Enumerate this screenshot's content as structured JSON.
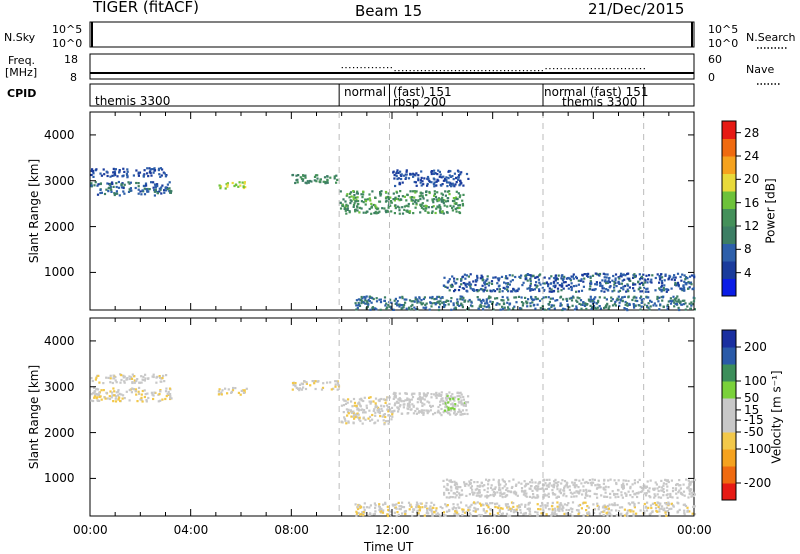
{
  "header": {
    "title": "TIGER (fitACF)",
    "beam": "Beam 15",
    "date": "21/Dec/2015"
  },
  "params": {
    "nsky_label": "N.Sky",
    "nsky_ticks": [
      "10^5",
      "10^0"
    ],
    "nsearch_label": "N.Search",
    "freq_label_1": "Freq.",
    "freq_label_2": "[MHz]",
    "freq_ticks": [
      "18",
      "8"
    ],
    "nave_label": "Nave",
    "nave_ticks": [
      "60",
      "0"
    ],
    "cpid_label": "CPID",
    "cpid_segments": [
      {
        "start": 0.0,
        "end": 9.9,
        "labels": [
          "themis 3300"
        ]
      },
      {
        "start": 9.9,
        "end": 11.9,
        "labels": [
          "normal"
        ]
      },
      {
        "start": 11.9,
        "end": 18.0,
        "labels": [
          "(fast) 151",
          "rbsp 200"
        ]
      },
      {
        "start": 18.0,
        "end": 22.0,
        "labels": [
          "normal (fast) 151",
          "themis 3300"
        ]
      },
      {
        "start": 22.0,
        "end": 24.0,
        "labels": []
      }
    ]
  },
  "chart_data": [
    {
      "type": "heatmap",
      "name": "power",
      "xlabel": "",
      "ylabel": "Slant Range [km]",
      "xlim": [
        0,
        24
      ],
      "ylim": [
        180,
        4500
      ],
      "y_ticks": [
        "4000",
        "3000",
        "2000",
        "1000"
      ],
      "y_tick_values": [
        4000,
        3000,
        2000,
        1000
      ],
      "colorbar": {
        "label": "Power [dB]",
        "ticks": [
          "28",
          "24",
          "20",
          "16",
          "12",
          "8",
          "4"
        ],
        "tick_values": [
          28,
          24,
          20,
          16,
          12,
          8,
          4
        ],
        "range": [
          0,
          30
        ],
        "colors": [
          "#0b1de6",
          "#1a3b9c",
          "#2d5faa",
          "#3c7e64",
          "#44905a",
          "#6dc23a",
          "#e8d93a",
          "#f5a21e",
          "#ef6a10",
          "#e61a14"
        ]
      },
      "echo_regions": [
        {
          "t": [
            0.0,
            3.2
          ],
          "r": [
            2700,
            3000
          ],
          "value": 8
        },
        {
          "t": [
            0.0,
            3.0
          ],
          "r": [
            3100,
            3300
          ],
          "value": 6
        },
        {
          "t": [
            5.0,
            6.2
          ],
          "r": [
            2850,
            3000
          ],
          "value": 17
        },
        {
          "t": [
            8.0,
            9.9
          ],
          "r": [
            2950,
            3150
          ],
          "value": 12
        },
        {
          "t": [
            9.9,
            14.8
          ],
          "r": [
            2300,
            2800
          ],
          "value": 13
        },
        {
          "t": [
            12.0,
            15.0
          ],
          "r": [
            2900,
            3250
          ],
          "value": 6
        },
        {
          "t": [
            14.0,
            24.0
          ],
          "r": [
            600,
            1000
          ],
          "value": 7
        },
        {
          "t": [
            10.5,
            24.0
          ],
          "r": [
            200,
            500
          ],
          "value": 9
        }
      ]
    },
    {
      "type": "heatmap",
      "name": "velocity",
      "xlabel": "Time UT",
      "ylabel": "Slant Range [km]",
      "xlim": [
        0,
        24
      ],
      "ylim": [
        180,
        4500
      ],
      "x_ticks": [
        "00:00",
        "04:00",
        "08:00",
        "12:00",
        "16:00",
        "20:00",
        "00:00"
      ],
      "x_tick_values": [
        0,
        4,
        8,
        12,
        16,
        20,
        24
      ],
      "y_ticks": [
        "4000",
        "3000",
        "2000",
        "1000"
      ],
      "y_tick_values": [
        4000,
        3000,
        2000,
        1000
      ],
      "colorbar": {
        "label": "Velocity [m s⁻¹]",
        "ticks": [
          "200",
          "100",
          "50",
          "15",
          "-15",
          "-50",
          "-100",
          "-200"
        ],
        "tick_values": [
          200,
          100,
          50,
          15,
          -15,
          -50,
          -100,
          -200
        ],
        "range": [
          -250,
          250
        ],
        "colors": [
          "#e61a14",
          "#ef6a10",
          "#f5a21e",
          "#f2c84a",
          "#c8c8c8",
          "#c8c8c8",
          "#7ad13a",
          "#3c8e5a",
          "#2a5aa8",
          "#1a2fa0"
        ]
      },
      "echo_regions": [
        {
          "t": [
            0.0,
            3.2
          ],
          "r": [
            2700,
            3000
          ],
          "value": -40
        },
        {
          "t": [
            0.0,
            3.0
          ],
          "r": [
            3100,
            3300
          ],
          "value": -30
        },
        {
          "t": [
            5.0,
            6.2
          ],
          "r": [
            2850,
            3000
          ],
          "value": -45
        },
        {
          "t": [
            8.0,
            9.9
          ],
          "r": [
            2950,
            3150
          ],
          "value": -35
        },
        {
          "t": [
            9.9,
            12.0
          ],
          "r": [
            2200,
            2800
          ],
          "value": -30
        },
        {
          "t": [
            12.0,
            14.8
          ],
          "r": [
            2400,
            2900
          ],
          "value": 0
        },
        {
          "t": [
            14.0,
            15.0
          ],
          "r": [
            2400,
            2900
          ],
          "value": 40
        },
        {
          "t": [
            14.0,
            24.0
          ],
          "r": [
            600,
            1000
          ],
          "value": 0
        },
        {
          "t": [
            10.5,
            24.0
          ],
          "r": [
            200,
            500
          ],
          "value": -35
        }
      ]
    }
  ]
}
